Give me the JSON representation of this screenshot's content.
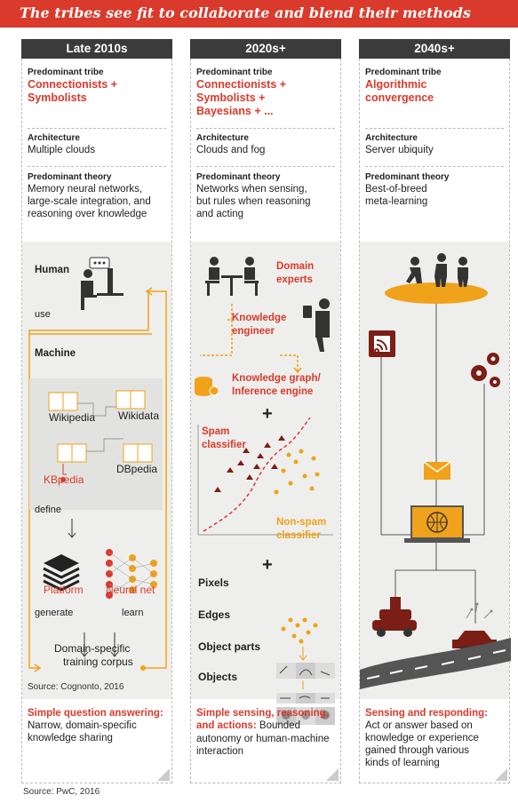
{
  "banner": {
    "title": "The tribes see fit to collaborate and blend their methods"
  },
  "col1": {
    "header": "Late 2010s",
    "tribe_label": "Predominant tribe",
    "tribe_l1": "Connectionists +",
    "tribe_l2": "Symbolists",
    "arch_label": "Architecture",
    "arch_value": "Multiple clouds",
    "theory_label": "Predominant theory",
    "theory_l1": "Memory neural networks,",
    "theory_l2": "large-scale integration, and",
    "theory_l3": "reasoning over knowledge",
    "diagram": {
      "human": "Human",
      "use": "use",
      "machine": "Machine",
      "wikipedia": "Wikipedia",
      "wikidata": "Wikidata",
      "kbpedia": "KBpedia",
      "dbpedia": "DBpedia",
      "define": "define",
      "platform": "Platform",
      "neural_net": "Neural net",
      "generate": "generate",
      "learn": "learn",
      "corpus_l1": "Domain-specific",
      "corpus_l2": "training corpus"
    },
    "source": "Source: Cognonto, 2016",
    "summary_title": "Simple question answering:",
    "summary_l1": "Narrow, domain-specific",
    "summary_l2": "knowledge sharing"
  },
  "col2": {
    "header": "2020s+",
    "tribe_label": "Predominant tribe",
    "tribe_l1": "Connectionists +",
    "tribe_l2": "Symbolists +",
    "tribe_l3": "Bayesians + ...",
    "arch_label": "Architecture",
    "arch_value": "Clouds and fog",
    "theory_label": "Predominant theory",
    "theory_l1": "Networks when sensing,",
    "theory_l2": "but rules when reasoning",
    "theory_l3": "and acting",
    "diagram": {
      "domain_l1": "Domain",
      "domain_l2": "experts",
      "ke_l1": "Knowledge",
      "ke_l2": "engineer",
      "kg_l1": "Knowledge graph/",
      "kg_l2": "Inference engine",
      "plus1": "+",
      "spam_l1": "Spam",
      "spam_l2": "classifier",
      "nonspam_l1": "Non-spam",
      "nonspam_l2": "classifier",
      "plus2": "+",
      "pixels": "Pixels",
      "edges": "Edges",
      "parts": "Object parts",
      "objects": "Objects"
    },
    "summary_title_l1": "Simple sensing, reasoning,",
    "summary_title_l2": "and actions:",
    "summary_l1_rest": " Bounded",
    "summary_l2": "autonomy or human-machine",
    "summary_l3": "interaction"
  },
  "col3": {
    "header": "2040s+",
    "tribe_label": "Predominant tribe",
    "tribe_l1": "Algorithmic",
    "tribe_l2": "convergence",
    "arch_label": "Architecture",
    "arch_value": "Server ubiquity",
    "theory_label": "Predominant theory",
    "theory_l1": "Best-of-breed",
    "theory_l2": "meta-learning",
    "summary_title": "Sensing and responding:",
    "summary_l1": "Act or answer based on",
    "summary_l2": "knowledge or experience",
    "summary_l3": "gained through various",
    "summary_l4": "kinds of learning"
  },
  "footer": {
    "source": "Source: PwC, 2016"
  },
  "colors": {
    "accent_red": "#d93a2b",
    "accent_orange": "#f0a21a",
    "dark_red": "#7a1e16",
    "header_gray": "#3b3b3b",
    "panel_gray": "#eeeeec"
  }
}
